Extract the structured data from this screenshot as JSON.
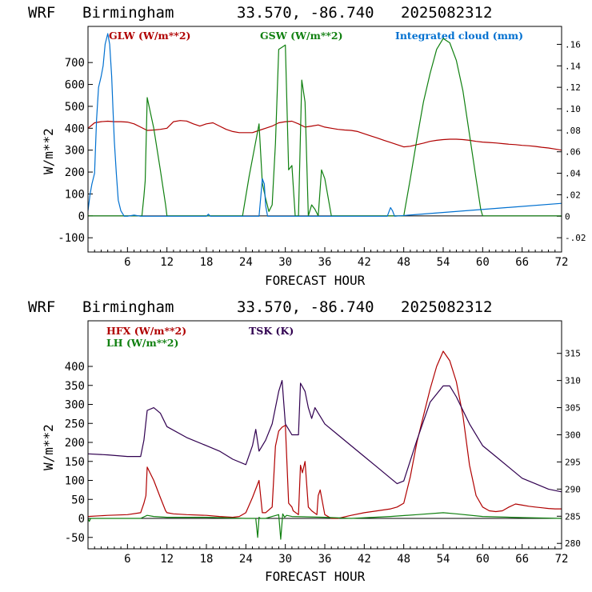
{
  "colors": {
    "red": "#b00000",
    "green": "#108010",
    "blue": "#0070d0",
    "purple": "#300050",
    "frame": "#000000"
  },
  "panel1": {
    "header": {
      "model": "WRF",
      "city": "Birmingham",
      "coords": "33.570, -86.740",
      "run": "2025082312"
    },
    "xlabel": "FORECAST HOUR",
    "ylabel": "W/m**2",
    "xticks": [
      "6",
      "12",
      "18",
      "24",
      "30",
      "36",
      "42",
      "48",
      "54",
      "60",
      "66",
      "72"
    ],
    "yticks": [
      "-100",
      "0",
      "100",
      "200",
      "300",
      "400",
      "500",
      "600",
      "700"
    ],
    "y2ticks": [
      "-.02",
      "0",
      ".02",
      ".04",
      ".06",
      ".08",
      ".10",
      ".12",
      ".14",
      ".16"
    ],
    "legend": [
      "GLW (W/m**2)",
      "GSW (W/m**2)",
      "Integrated cloud (mm)"
    ]
  },
  "panel2": {
    "header": {
      "model": "WRF",
      "city": "Birmingham",
      "coords": "33.570, -86.740",
      "run": "2025082312"
    },
    "xlabel": "FORECAST HOUR",
    "ylabel": "W/m**2",
    "xticks": [
      "6",
      "12",
      "18",
      "24",
      "30",
      "36",
      "42",
      "48",
      "54",
      "60",
      "66",
      "72"
    ],
    "yticks": [
      "-50",
      "0",
      "50",
      "100",
      "150",
      "200",
      "250",
      "300",
      "350",
      "400"
    ],
    "y2ticks": [
      "280",
      "285",
      "290",
      "295",
      "300",
      "305",
      "310",
      "315"
    ],
    "legend": [
      "HFX (W/m**2)",
      "LH (W/m**2)",
      "TSK (K)"
    ]
  },
  "chart_data": [
    {
      "type": "line",
      "title": "",
      "xlabel": "FORECAST HOUR",
      "ylabel": "W/m**2",
      "xlim": [
        0,
        72
      ],
      "ylim": [
        -165,
        865
      ],
      "y2lim": [
        -0.0333,
        0.1767
      ],
      "grid": false,
      "legend_position": "top",
      "series": [
        {
          "name": "GLW (W/m**2)",
          "axis": "left",
          "color": "#b00000",
          "x": [
            0,
            1,
            2,
            3,
            4,
            5,
            6,
            7,
            8,
            9,
            10,
            11,
            12,
            13,
            14,
            15,
            16,
            17,
            18,
            19,
            20,
            21,
            22,
            23,
            24,
            25,
            26,
            27,
            28,
            29,
            30,
            31,
            32,
            33,
            34,
            35,
            36,
            37,
            38,
            39,
            40,
            41,
            42,
            43,
            44,
            45,
            46,
            47,
            48,
            49,
            50,
            51,
            52,
            53,
            54,
            55,
            56,
            57,
            58,
            59,
            60,
            61,
            62,
            63,
            64,
            65,
            66,
            67,
            68,
            69,
            70,
            71,
            72
          ],
          "y": [
            400,
            425,
            430,
            432,
            430,
            430,
            428,
            420,
            405,
            390,
            392,
            395,
            400,
            430,
            435,
            433,
            420,
            410,
            420,
            425,
            410,
            395,
            385,
            380,
            380,
            380,
            390,
            400,
            410,
            425,
            430,
            432,
            420,
            405,
            410,
            415,
            405,
            400,
            395,
            392,
            390,
            385,
            375,
            365,
            355,
            345,
            335,
            325,
            315,
            318,
            325,
            332,
            340,
            345,
            348,
            350,
            350,
            348,
            345,
            340,
            337,
            335,
            333,
            330,
            327,
            325,
            322,
            320,
            317,
            313,
            310,
            305,
            300
          ]
        },
        {
          "name": "GSW (W/m**2)",
          "axis": "left",
          "color": "#108010",
          "x": [
            0,
            8.2,
            8.5,
            8.7,
            9,
            10,
            11,
            11.8,
            12,
            23.5,
            24.5,
            25.5,
            26,
            26.5,
            27,
            27.5,
            28,
            28.5,
            29,
            29.5,
            30,
            30.5,
            31,
            31.5,
            32,
            32.5,
            33,
            33.5,
            34,
            34.5,
            35,
            35.5,
            36,
            37,
            37.5,
            38,
            48,
            49,
            50,
            51,
            52,
            53,
            54,
            55,
            56,
            57,
            58,
            59,
            59.7,
            60,
            72
          ],
          "y": [
            0,
            0,
            90,
            160,
            540,
            400,
            210,
            50,
            0,
            0,
            180,
            340,
            420,
            150,
            80,
            20,
            50,
            330,
            760,
            770,
            780,
            210,
            230,
            0,
            0,
            620,
            520,
            0,
            50,
            30,
            0,
            210,
            170,
            0,
            0,
            0,
            0,
            170,
            350,
            520,
            650,
            760,
            810,
            790,
            710,
            570,
            370,
            170,
            30,
            0,
            0
          ]
        },
        {
          "name": "Integrated cloud (mm)",
          "axis": "right",
          "color": "#0070d0",
          "x": [
            0,
            0.3,
            0.6,
            1,
            1.3,
            1.6,
            2,
            2.3,
            2.6,
            3,
            3.3,
            3.6,
            3.8,
            4,
            4.3,
            4.6,
            5,
            5.3,
            5.5,
            6,
            7,
            8,
            18,
            18.3,
            18.6,
            26,
            26.3,
            26.5,
            26.8,
            27,
            27.3,
            45.5,
            45.8,
            46,
            46.3,
            46.6,
            72
          ],
          "y": [
            0.005,
            0.02,
            0.03,
            0.04,
            0.09,
            0.12,
            0.13,
            0.14,
            0.16,
            0.17,
            0.16,
            0.13,
            0.1,
            0.07,
            0.04,
            0.015,
            0.005,
            0.002,
            0,
            0,
            0.001,
            0,
            0,
            0.002,
            0,
            0,
            0.02,
            0.035,
            0.03,
            0.01,
            0,
            0,
            0.005,
            0.008,
            0.005,
            0,
            0.012
          ]
        }
      ]
    },
    {
      "type": "line",
      "title": "",
      "xlabel": "FORECAST HOUR",
      "ylabel": "W/m**2",
      "xlim": [
        0,
        72
      ],
      "ylim": [
        -80,
        520
      ],
      "y2lim": [
        279,
        321
      ],
      "grid": false,
      "legend_position": "top",
      "series": [
        {
          "name": "HFX (W/m**2)",
          "axis": "left",
          "color": "#b00000",
          "x": [
            0,
            3,
            6,
            8,
            8.5,
            8.8,
            9,
            10,
            11,
            11.8,
            12,
            13,
            15,
            18,
            20,
            22,
            23,
            24,
            25,
            26,
            26.5,
            27,
            28,
            28.5,
            29,
            29.5,
            30,
            30.5,
            31,
            31.2,
            32,
            32.3,
            32.6,
            33,
            33.5,
            34,
            34.8,
            35,
            35.3,
            36,
            37,
            38,
            40,
            42,
            44,
            46,
            47,
            48,
            49,
            50,
            51,
            52,
            53,
            54,
            55,
            56,
            57,
            58,
            59,
            60,
            61,
            62,
            63,
            64,
            65,
            66,
            67,
            68,
            69,
            70,
            71,
            72
          ],
          "y": [
            5,
            8,
            10,
            15,
            40,
            60,
            135,
            100,
            55,
            20,
            15,
            12,
            10,
            8,
            5,
            3,
            5,
            15,
            55,
            100,
            15,
            15,
            30,
            190,
            230,
            240,
            245,
            40,
            30,
            20,
            10,
            140,
            120,
            150,
            30,
            20,
            10,
            60,
            75,
            10,
            0,
            0,
            8,
            15,
            20,
            25,
            30,
            40,
            110,
            200,
            270,
            340,
            400,
            440,
            415,
            360,
            270,
            140,
            60,
            30,
            20,
            18,
            20,
            30,
            38,
            35,
            32,
            30,
            28,
            26,
            25,
            25
          ]
        },
        {
          "name": "LH (W/m**2)",
          "axis": "left",
          "color": "#108010",
          "x": [
            0,
            0.2,
            0.4,
            8,
            9,
            10,
            12,
            18,
            24,
            25.5,
            25.8,
            26,
            26.2,
            27,
            28,
            29,
            29.3,
            29.6,
            29.9,
            30.2,
            31,
            36,
            40,
            46,
            50,
            54,
            56,
            60,
            66,
            72
          ],
          "y": [
            0,
            -8,
            0,
            0,
            8,
            5,
            3,
            3,
            0,
            0,
            -50,
            3,
            0,
            0,
            5,
            10,
            -55,
            12,
            3,
            8,
            5,
            3,
            0,
            5,
            10,
            15,
            12,
            5,
            2,
            0
          ]
        },
        {
          "name": "TSK (K)",
          "axis": "right",
          "color": "#300050",
          "x": [
            0,
            3,
            6,
            8,
            8.5,
            9,
            10,
            11,
            12,
            15,
            18,
            20,
            22,
            24,
            25,
            25.5,
            26,
            27,
            28,
            29,
            29.5,
            30,
            30.5,
            31,
            32,
            32.3,
            33,
            33.5,
            34,
            34.5,
            35,
            35.5,
            36,
            38,
            40,
            42,
            44,
            46,
            47,
            48,
            50,
            52,
            54,
            55,
            56,
            58,
            60,
            62,
            64,
            66,
            68,
            70,
            72
          ],
          "y": [
            296.5,
            296.3,
            296.0,
            296.0,
            299,
            304.5,
            305,
            304,
            301.5,
            299.5,
            298,
            297.0,
            295.5,
            294.5,
            298,
            301,
            297,
            299,
            302,
            308,
            310,
            302,
            301,
            300,
            300,
            309.5,
            308,
            305,
            303,
            305,
            304,
            303,
            302,
            300,
            298,
            296,
            294,
            292,
            291,
            291.5,
            299,
            306,
            309,
            309,
            307,
            302,
            298,
            296,
            294,
            292,
            291,
            290,
            289.5
          ]
        }
      ]
    }
  ]
}
